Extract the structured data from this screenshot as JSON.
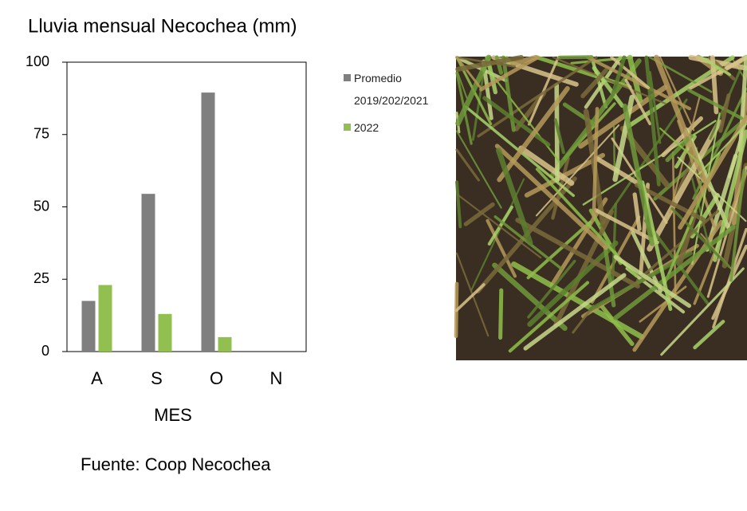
{
  "chart_data": {
    "type": "bar",
    "title": "Lluvia mensual Necochea (mm)",
    "x_label": "MES",
    "source": "Fuente: Coop Necochea",
    "categories": [
      "A",
      "S",
      "O",
      "N"
    ],
    "series": [
      {
        "name": "Promedio 2019/202/2021",
        "color": "#7f7f7f",
        "values": [
          17.5,
          54.5,
          89.5,
          null
        ]
      },
      {
        "name": "2022",
        "color": "#92c050",
        "values": [
          23,
          13,
          5,
          null
        ]
      }
    ],
    "ylim": [
      0,
      100
    ],
    "yticks": [
      0,
      25,
      50,
      75,
      100
    ],
    "grid": false,
    "legend": "right"
  }
}
